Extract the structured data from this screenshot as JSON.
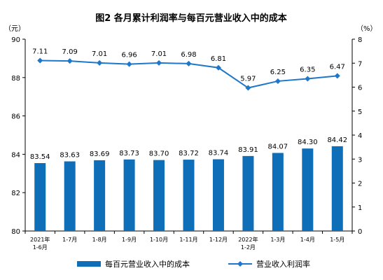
{
  "chart_data": {
    "type": "bar+line",
    "title": "图2 各月累计利润率与每百元营业收入中的成本",
    "left_axis_unit": "（元）",
    "right_axis_unit": "（%）",
    "categories": [
      [
        "2021年",
        "1-6月"
      ],
      [
        "1-7月"
      ],
      [
        "1-8月"
      ],
      [
        "1-9月"
      ],
      [
        "1-10月"
      ],
      [
        "1-11月"
      ],
      [
        "1-12月"
      ],
      [
        "2022年",
        "1-2月"
      ],
      [
        "1-3月"
      ],
      [
        "1-4月"
      ],
      [
        "1-5月"
      ]
    ],
    "y_left": {
      "min": 80,
      "max": 90,
      "ticks": [
        80,
        82,
        84,
        86,
        88,
        90
      ]
    },
    "y_right": {
      "min": 0,
      "max": 8,
      "ticks": [
        0,
        1,
        2,
        3,
        4,
        5,
        6,
        7,
        8
      ]
    },
    "series": [
      {
        "name": "每百元营业收入中的成本",
        "kind": "bar",
        "axis": "left",
        "color": "#0e6eb8",
        "values": [
          83.54,
          83.63,
          83.69,
          83.73,
          83.7,
          83.72,
          83.74,
          83.91,
          84.07,
          84.3,
          84.42
        ],
        "labels": [
          "83.54",
          "83.63",
          "83.69",
          "83.73",
          "83.70",
          "83.72",
          "83.74",
          "83.91",
          "84.07",
          "84.30",
          "84.42"
        ]
      },
      {
        "name": "营业收入利润率",
        "kind": "line",
        "axis": "right",
        "color": "#1f77c9",
        "values": [
          7.11,
          7.09,
          7.01,
          6.96,
          7.01,
          6.98,
          6.81,
          5.97,
          6.25,
          6.35,
          6.47
        ],
        "labels": [
          "7.11",
          "7.09",
          "7.01",
          "6.96",
          "7.01",
          "6.98",
          "6.81",
          "5.97",
          "6.25",
          "6.35",
          "6.47"
        ]
      }
    ],
    "legend_position": "bottom",
    "grid": false
  }
}
